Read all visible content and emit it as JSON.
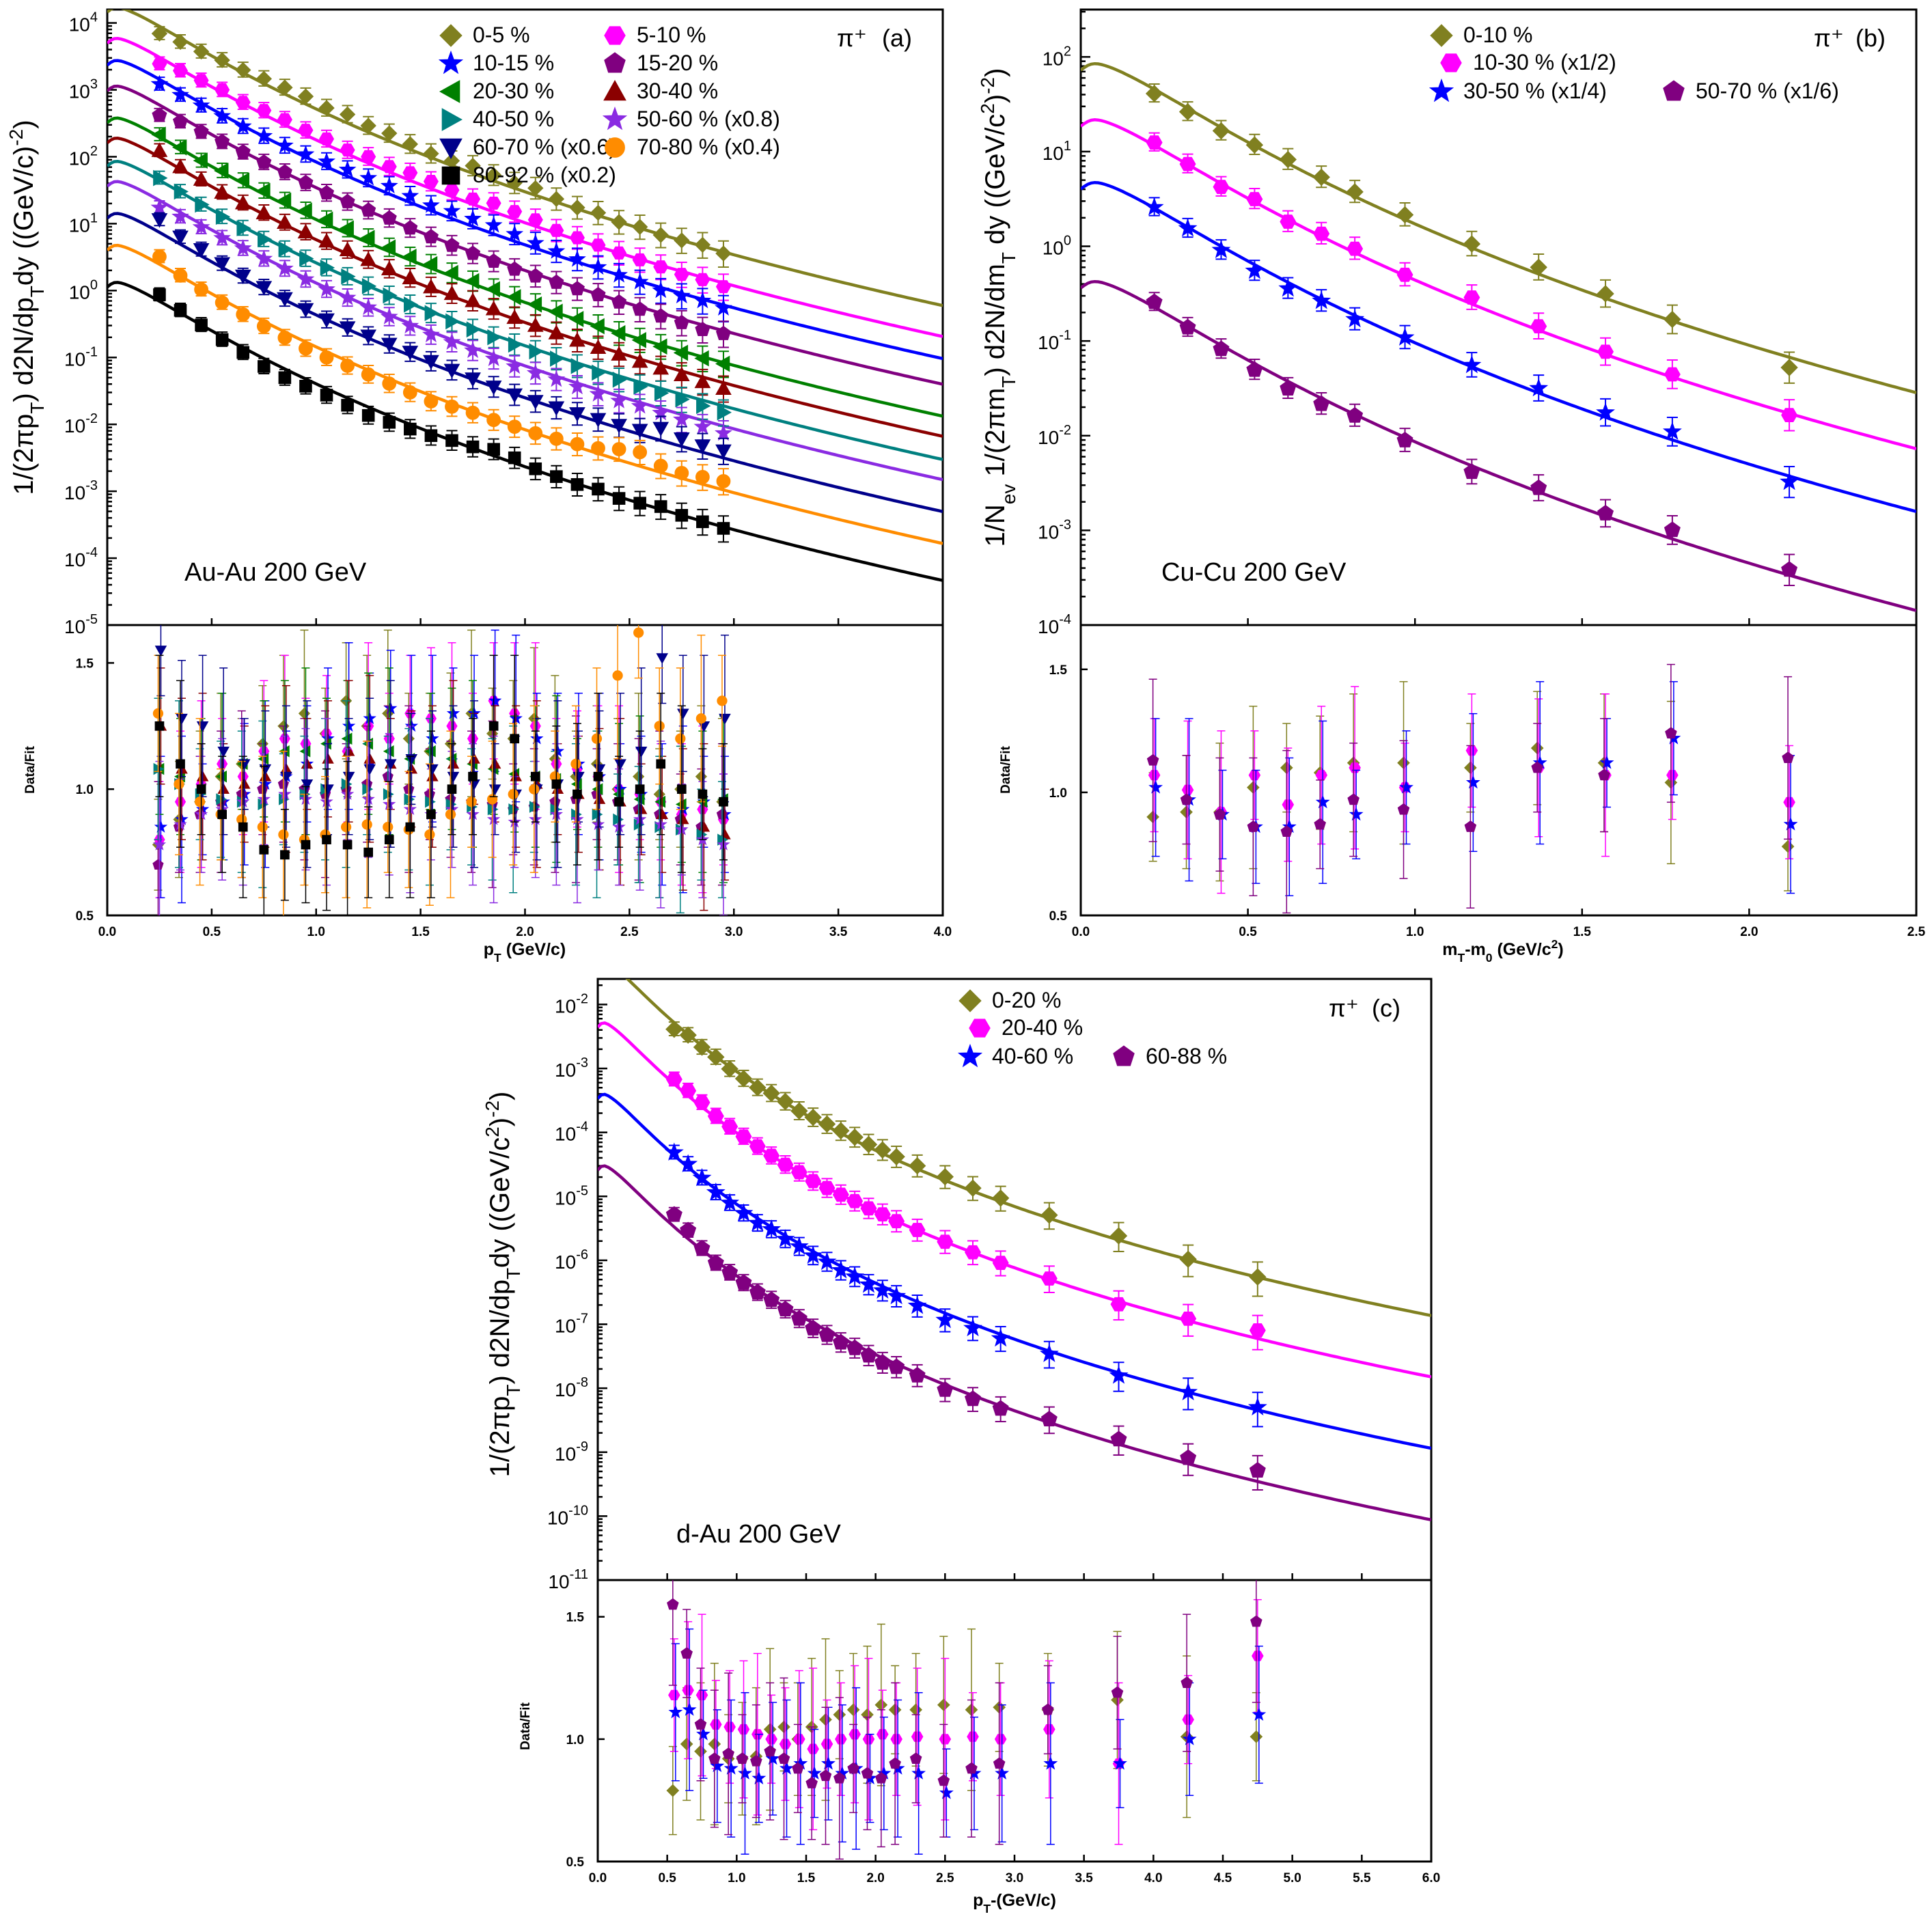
{
  "chart_data": [
    {
      "id": "a",
      "type": "scatter",
      "panel_label": "(a)",
      "particle": "π⁺",
      "system_label": "Au-Au 200 GeV",
      "ylabel": "1/(2πp_T) d2N/dp_T dy ((GeV/c)^-2)",
      "xlabel": "p_T (GeV/c)",
      "ratio_ylabel": "Data/Fit",
      "xlim": [
        0,
        4
      ],
      "ylim_log10": [
        -5,
        4.2
      ],
      "ratio_ylim": [
        0.5,
        1.65
      ],
      "x_ticks": [
        "0.0",
        "0.5",
        "1.0",
        "1.5",
        "2.0",
        "2.5",
        "3.0",
        "3.5",
        "4.0"
      ],
      "y_ticks": [
        {
          "exp": -5,
          "label": "10",
          "sup": "-5"
        },
        {
          "exp": -4,
          "label": "10",
          "sup": "-4"
        },
        {
          "exp": -3,
          "label": "10",
          "sup": "-3"
        },
        {
          "exp": -2,
          "label": "10",
          "sup": "-2"
        },
        {
          "exp": -1,
          "label": "10",
          "sup": "-1"
        },
        {
          "exp": 0,
          "label": "10",
          "sup": "0"
        },
        {
          "exp": 1,
          "label": "10",
          "sup": "1"
        },
        {
          "exp": 2,
          "label": "10",
          "sup": "2"
        },
        {
          "exp": 3,
          "label": "10",
          "sup": "3"
        },
        {
          "exp": 4,
          "label": "10",
          "sup": "4"
        }
      ],
      "ratio_ticks": [
        "0.5",
        "1.0",
        "1.5"
      ],
      "x_points": [
        0.25,
        0.35,
        0.45,
        0.55,
        0.65,
        0.75,
        0.85,
        0.95,
        1.05,
        1.15,
        1.25,
        1.35,
        1.45,
        1.55,
        1.65,
        1.75,
        1.85,
        1.95,
        2.05,
        2.15,
        2.25,
        2.35,
        2.45,
        2.55,
        2.65,
        2.75,
        2.85,
        2.95
      ],
      "series": [
        {
          "name": "0-5 %",
          "marker": "diamond",
          "color": "#808020",
          "A": 18000.0,
          "scale": 1,
          "ratio": [
            0.78,
            0.88,
            0.95,
            1.05,
            1.1,
            1.18,
            1.25,
            1.3,
            1.22,
            1.35,
            1.25,
            1.3,
            1.2,
            1.15,
            1.18,
            1.3,
            1.22,
            1.2,
            1.28,
            1.12,
            1.05,
            1.1,
            1.0,
            1.05,
            0.98,
            1.0,
            1.05,
            0.95
          ]
        },
        {
          "name": "5-10 %",
          "marker": "hexagon",
          "color": "#ff00ff",
          "A": 6200.0,
          "scale": 1,
          "ratio": [
            0.8,
            0.95,
            1.02,
            1.1,
            1.05,
            1.15,
            1.2,
            1.18,
            1.22,
            1.15,
            1.25,
            1.2,
            1.3,
            1.28,
            1.25,
            1.2,
            1.35,
            1.3,
            1.25,
            1.1,
            1.08,
            1.05,
            1.0,
            0.98,
            0.95,
            0.9,
            0.92,
            0.88
          ]
        },
        {
          "name": "10-15 %",
          "marker": "star",
          "color": "#0000ff",
          "A": 2900.0,
          "scale": 1,
          "ratio": [
            0.85,
            0.88,
            0.92,
            0.95,
            0.98,
            1.02,
            1.05,
            1.1,
            1.2,
            1.25,
            1.28,
            1.32,
            1.25,
            1.2,
            1.3,
            1.3,
            1.35,
            1.28,
            1.2,
            1.15,
            1.1,
            1.05,
            1.0,
            0.98,
            0.9,
            0.92,
            0.95,
            0.9
          ]
        },
        {
          "name": "15-20 %",
          "marker": "pentagon",
          "color": "#800080",
          "A": 1200.0,
          "scale": 1,
          "ratio": [
            0.7,
            0.85,
            0.9,
            0.95,
            0.98,
            1.0,
            1.02,
            1.0,
            0.98,
            1.0,
            1.02,
            1.05,
            1.0,
            0.98,
            0.96,
            0.95,
            0.94,
            0.92,
            0.93,
            0.95,
            0.96,
            0.98,
            0.95,
            0.92,
            0.9,
            0.88,
            0.85,
            0.9
          ]
        },
        {
          "name": "20-30 %",
          "marker": "triangle-left",
          "color": "#008000",
          "A": 400.0,
          "scale": 1,
          "ratio": [
            1.08,
            1.05,
            1.0,
            1.05,
            1.1,
            1.12,
            1.15,
            1.15,
            1.18,
            1.2,
            1.18,
            1.15,
            1.12,
            1.15,
            1.12,
            1.1,
            1.08,
            1.06,
            1.05,
            1.04,
            1.02,
            1.0,
            0.98,
            0.96,
            0.95,
            0.94,
            0.95,
            0.96
          ]
        },
        {
          "name": "30-40 %",
          "marker": "triangle-up",
          "color": "#8b0000",
          "A": 200.0,
          "scale": 1,
          "ratio": [
            1.25,
            1.08,
            1.05,
            1.0,
            1.02,
            1.05,
            1.08,
            1.1,
            1.12,
            1.15,
            1.12,
            1.1,
            1.08,
            1.05,
            1.1,
            1.12,
            1.1,
            1.05,
            1.02,
            1.0,
            0.98,
            0.96,
            0.95,
            0.92,
            0.9,
            0.88,
            0.85,
            0.82
          ]
        },
        {
          "name": "40-50 %",
          "marker": "triangle-right",
          "color": "#008080",
          "A": 90.0,
          "scale": 1,
          "ratio": [
            1.08,
            1.02,
            0.98,
            0.96,
            0.95,
            0.94,
            0.96,
            0.98,
            1.0,
            1.02,
            1.0,
            0.98,
            0.96,
            0.95,
            0.94,
            0.93,
            0.92,
            0.92,
            0.93,
            0.92,
            0.9,
            0.9,
            0.88,
            0.86,
            0.85,
            0.84,
            0.82,
            0.8
          ]
        },
        {
          "name": "50-60 % (x0.8)",
          "marker": "star",
          "color": "#8a2be2",
          "A": 45.0,
          "scale": 0.8,
          "ratio": [
            0.78,
            0.86,
            0.9,
            0.92,
            0.95,
            0.96,
            0.98,
            0.96,
            0.95,
            0.98,
            0.96,
            0.94,
            0.92,
            0.9,
            0.92,
            0.9,
            0.88,
            0.87,
            0.88,
            0.9,
            0.88,
            0.86,
            0.85,
            0.88,
            0.86,
            0.84,
            0.8,
            0.78
          ]
        },
        {
          "name": "60-70 % (x0.6)",
          "marker": "triangle-down",
          "color": "#00008b",
          "A": 15.0,
          "scale": 0.6,
          "ratio": [
            1.55,
            1.28,
            1.25,
            1.15,
            1.1,
            1.08,
            1.05,
            1.02,
            1.0,
            1.05,
            1.08,
            1.1,
            1.12,
            1.08,
            1.05,
            1.02,
            1.0,
            0.98,
            1.0,
            1.02,
            1.05,
            1.08,
            1.1,
            1.15,
            1.52,
            1.3,
            1.25,
            1.28
          ]
        },
        {
          "name": "70-80 % (x0.4)",
          "marker": "circle",
          "color": "#ff8c00",
          "A": 5.0,
          "scale": 0.4,
          "ratio": [
            1.3,
            1.02,
            0.95,
            0.9,
            0.88,
            0.85,
            0.82,
            0.8,
            0.82,
            0.85,
            0.86,
            0.85,
            0.84,
            0.82,
            0.9,
            0.95,
            0.96,
            0.98,
            1.0,
            1.05,
            1.1,
            1.2,
            1.45,
            1.62,
            1.25,
            1.2,
            1.28,
            1.35
          ]
        },
        {
          "name": "80-92 % (x0.2)",
          "marker": "square",
          "color": "#000000",
          "A": 1.4,
          "scale": 0.2,
          "ratio": [
            1.25,
            1.1,
            1.0,
            0.9,
            0.85,
            0.76,
            0.74,
            0.78,
            0.8,
            0.78,
            0.75,
            0.8,
            0.85,
            0.9,
            1.0,
            1.05,
            1.25,
            1.2,
            1.05,
            1.02,
            0.98,
            1.05,
            0.95,
            1.0,
            1.1,
            1.0,
            0.98,
            0.95
          ]
        }
      ]
    },
    {
      "id": "b",
      "type": "scatter",
      "panel_label": "(b)",
      "particle": "π⁺",
      "system_label": "Cu-Cu 200 GeV",
      "ylabel": "1/N_ev 1/(2πm_T) d2N/dm_T dy ((GeV/c^2)^-2)",
      "xlabel": "m_T-m_0 (GeV/c^2)",
      "ratio_ylabel": "Data/Fit",
      "xlim": [
        0,
        2.5
      ],
      "ylim_log10": [
        -4,
        2.5
      ],
      "ratio_ylim": [
        0.5,
        1.68
      ],
      "x_ticks": [
        "0.0",
        "0.5",
        "1.0",
        "1.5",
        "2.0",
        "2.5"
      ],
      "y_ticks": [
        {
          "exp": -4,
          "label": "10",
          "sup": "-4"
        },
        {
          "exp": -3,
          "label": "10",
          "sup": "-3"
        },
        {
          "exp": -2,
          "label": "10",
          "sup": "-2"
        },
        {
          "exp": -1,
          "label": "10",
          "sup": "-1"
        },
        {
          "exp": 0,
          "label": "10",
          "sup": "0"
        },
        {
          "exp": 1,
          "label": "10",
          "sup": "1"
        },
        {
          "exp": 2,
          "label": "10",
          "sup": "2"
        }
      ],
      "ratio_ticks": [
        "0.5",
        "1.0",
        "1.5"
      ],
      "x_points": [
        0.22,
        0.32,
        0.42,
        0.52,
        0.62,
        0.72,
        0.82,
        0.97,
        1.17,
        1.37,
        1.57,
        1.77,
        2.12
      ],
      "series": [
        {
          "name": "0-10 %",
          "marker": "diamond",
          "color": "#808020",
          "A": 90,
          "scale": 1,
          "ratio": [
            0.9,
            0.92,
            0.92,
            1.02,
            1.1,
            1.08,
            1.12,
            1.12,
            1.1,
            1.18,
            1.12,
            1.04,
            0.78
          ]
        },
        {
          "name": "10-30 % (x1/2)",
          "marker": "hexagon",
          "color": "#ff00ff",
          "A": 23,
          "scale": 0.5,
          "ratio": [
            1.07,
            1.01,
            0.92,
            1.07,
            0.95,
            1.07,
            1.1,
            1.02,
            1.17,
            1.1,
            1.07,
            1.07,
            0.96
          ]
        },
        {
          "name": "30-50 % (x1/4)",
          "marker": "star",
          "color": "#0000ff",
          "A": 5.0,
          "scale": 0.25,
          "ratio": [
            1.02,
            0.97,
            0.91,
            0.86,
            0.86,
            0.96,
            0.91,
            1.02,
            1.04,
            1.12,
            1.12,
            1.22,
            0.87
          ]
        },
        {
          "name": "50-70 % (x1/6)",
          "marker": "pentagon",
          "color": "#800080",
          "A": 0.45,
          "scale": 0.1667,
          "ratio": [
            1.13,
            0.97,
            0.91,
            0.86,
            0.84,
            0.87,
            0.97,
            0.93,
            0.86,
            1.1,
            1.07,
            1.24,
            1.14
          ]
        }
      ]
    },
    {
      "id": "c",
      "type": "scatter",
      "panel_label": "(c)",
      "particle": "π⁺",
      "system_label": "d-Au 200 GeV",
      "ylabel": "1/(2πp_T) d2N/dp_T dy ((GeV/c^2)^-2)",
      "xlabel": "p_T-(GeV/c)",
      "ratio_ylabel": "Data/Fit",
      "xlim": [
        0,
        6
      ],
      "ylim_log10": [
        -11,
        -1.6
      ],
      "ratio_ylim": [
        0.5,
        1.65
      ],
      "x_ticks": [
        "0.0",
        "0.5",
        "1.0",
        "1.5",
        "2.0",
        "2.5",
        "3.0",
        "3.5",
        "4.0",
        "4.5",
        "5.0",
        "5.5",
        "6.0"
      ],
      "y_ticks": [
        {
          "exp": -11,
          "label": "10",
          "sup": "-11"
        },
        {
          "exp": -10,
          "label": "10",
          "sup": "-10"
        },
        {
          "exp": -9,
          "label": "10",
          "sup": "-9"
        },
        {
          "exp": -8,
          "label": "10",
          "sup": "-8"
        },
        {
          "exp": -7,
          "label": "10",
          "sup": "-7"
        },
        {
          "exp": -6,
          "label": "10",
          "sup": "-6"
        },
        {
          "exp": -5,
          "label": "10",
          "sup": "-5"
        },
        {
          "exp": -4,
          "label": "10",
          "sup": "-4"
        },
        {
          "exp": -3,
          "label": "10",
          "sup": "-3"
        },
        {
          "exp": -2,
          "label": "10",
          "sup": "-2"
        }
      ],
      "ratio_ticks": [
        "0.5",
        "1.0",
        "1.5"
      ],
      "x_points": [
        0.55,
        0.65,
        0.75,
        0.85,
        0.95,
        1.05,
        1.15,
        1.25,
        1.35,
        1.45,
        1.55,
        1.65,
        1.75,
        1.85,
        1.95,
        2.05,
        2.15,
        2.3,
        2.5,
        2.7,
        2.9,
        3.25,
        3.75,
        4.25,
        4.75
      ],
      "series": [
        {
          "name": "0-20 %",
          "marker": "diamond",
          "color": "#808020",
          "A": 0.05,
          "scale": 1,
          "ratio": [
            0.79,
            0.98,
            0.95,
            0.98,
            0.92,
            0.92,
            0.93,
            1.04,
            1.05,
            1.0,
            1.05,
            1.08,
            1.1,
            1.12,
            1.1,
            1.14,
            1.12,
            1.12,
            1.14,
            1.12,
            1.13,
            1.12,
            1.16,
            1.01,
            1.01
          ]
        },
        {
          "name": "20-40 %",
          "marker": "hexagon",
          "color": "#ff00ff",
          "A": 0.0055,
          "scale": 1,
          "ratio": [
            1.18,
            1.2,
            1.18,
            1.06,
            1.05,
            1.04,
            1.02,
            1.0,
            0.98,
            1.0,
            0.96,
            0.98,
            1.0,
            1.02,
            1.0,
            1.02,
            1.0,
            1.01,
            1.0,
            1.01,
            1.0,
            1.04,
            0.9,
            1.08,
            1.34
          ]
        },
        {
          "name": "40-60 %",
          "marker": "star",
          "color": "#0000ff",
          "A": 0.00042,
          "scale": 1,
          "ratio": [
            1.11,
            1.12,
            1.02,
            0.89,
            0.88,
            0.86,
            0.84,
            0.92,
            0.88,
            0.9,
            0.86,
            0.9,
            0.86,
            0.88,
            0.84,
            0.86,
            0.88,
            0.86,
            0.78,
            0.86,
            0.86,
            0.9,
            0.9,
            1.0,
            1.1
          ]
        },
        {
          "name": "60-88 %",
          "marker": "pentagon",
          "color": "#800080",
          "A": 3.2e-05,
          "scale": 1,
          "ratio": [
            1.55,
            1.35,
            1.06,
            0.92,
            0.94,
            0.92,
            0.91,
            0.95,
            0.92,
            0.88,
            0.82,
            0.85,
            0.84,
            0.88,
            0.86,
            0.84,
            0.9,
            0.92,
            0.83,
            0.88,
            0.9,
            1.12,
            1.19,
            1.23,
            1.48
          ]
        }
      ]
    }
  ]
}
